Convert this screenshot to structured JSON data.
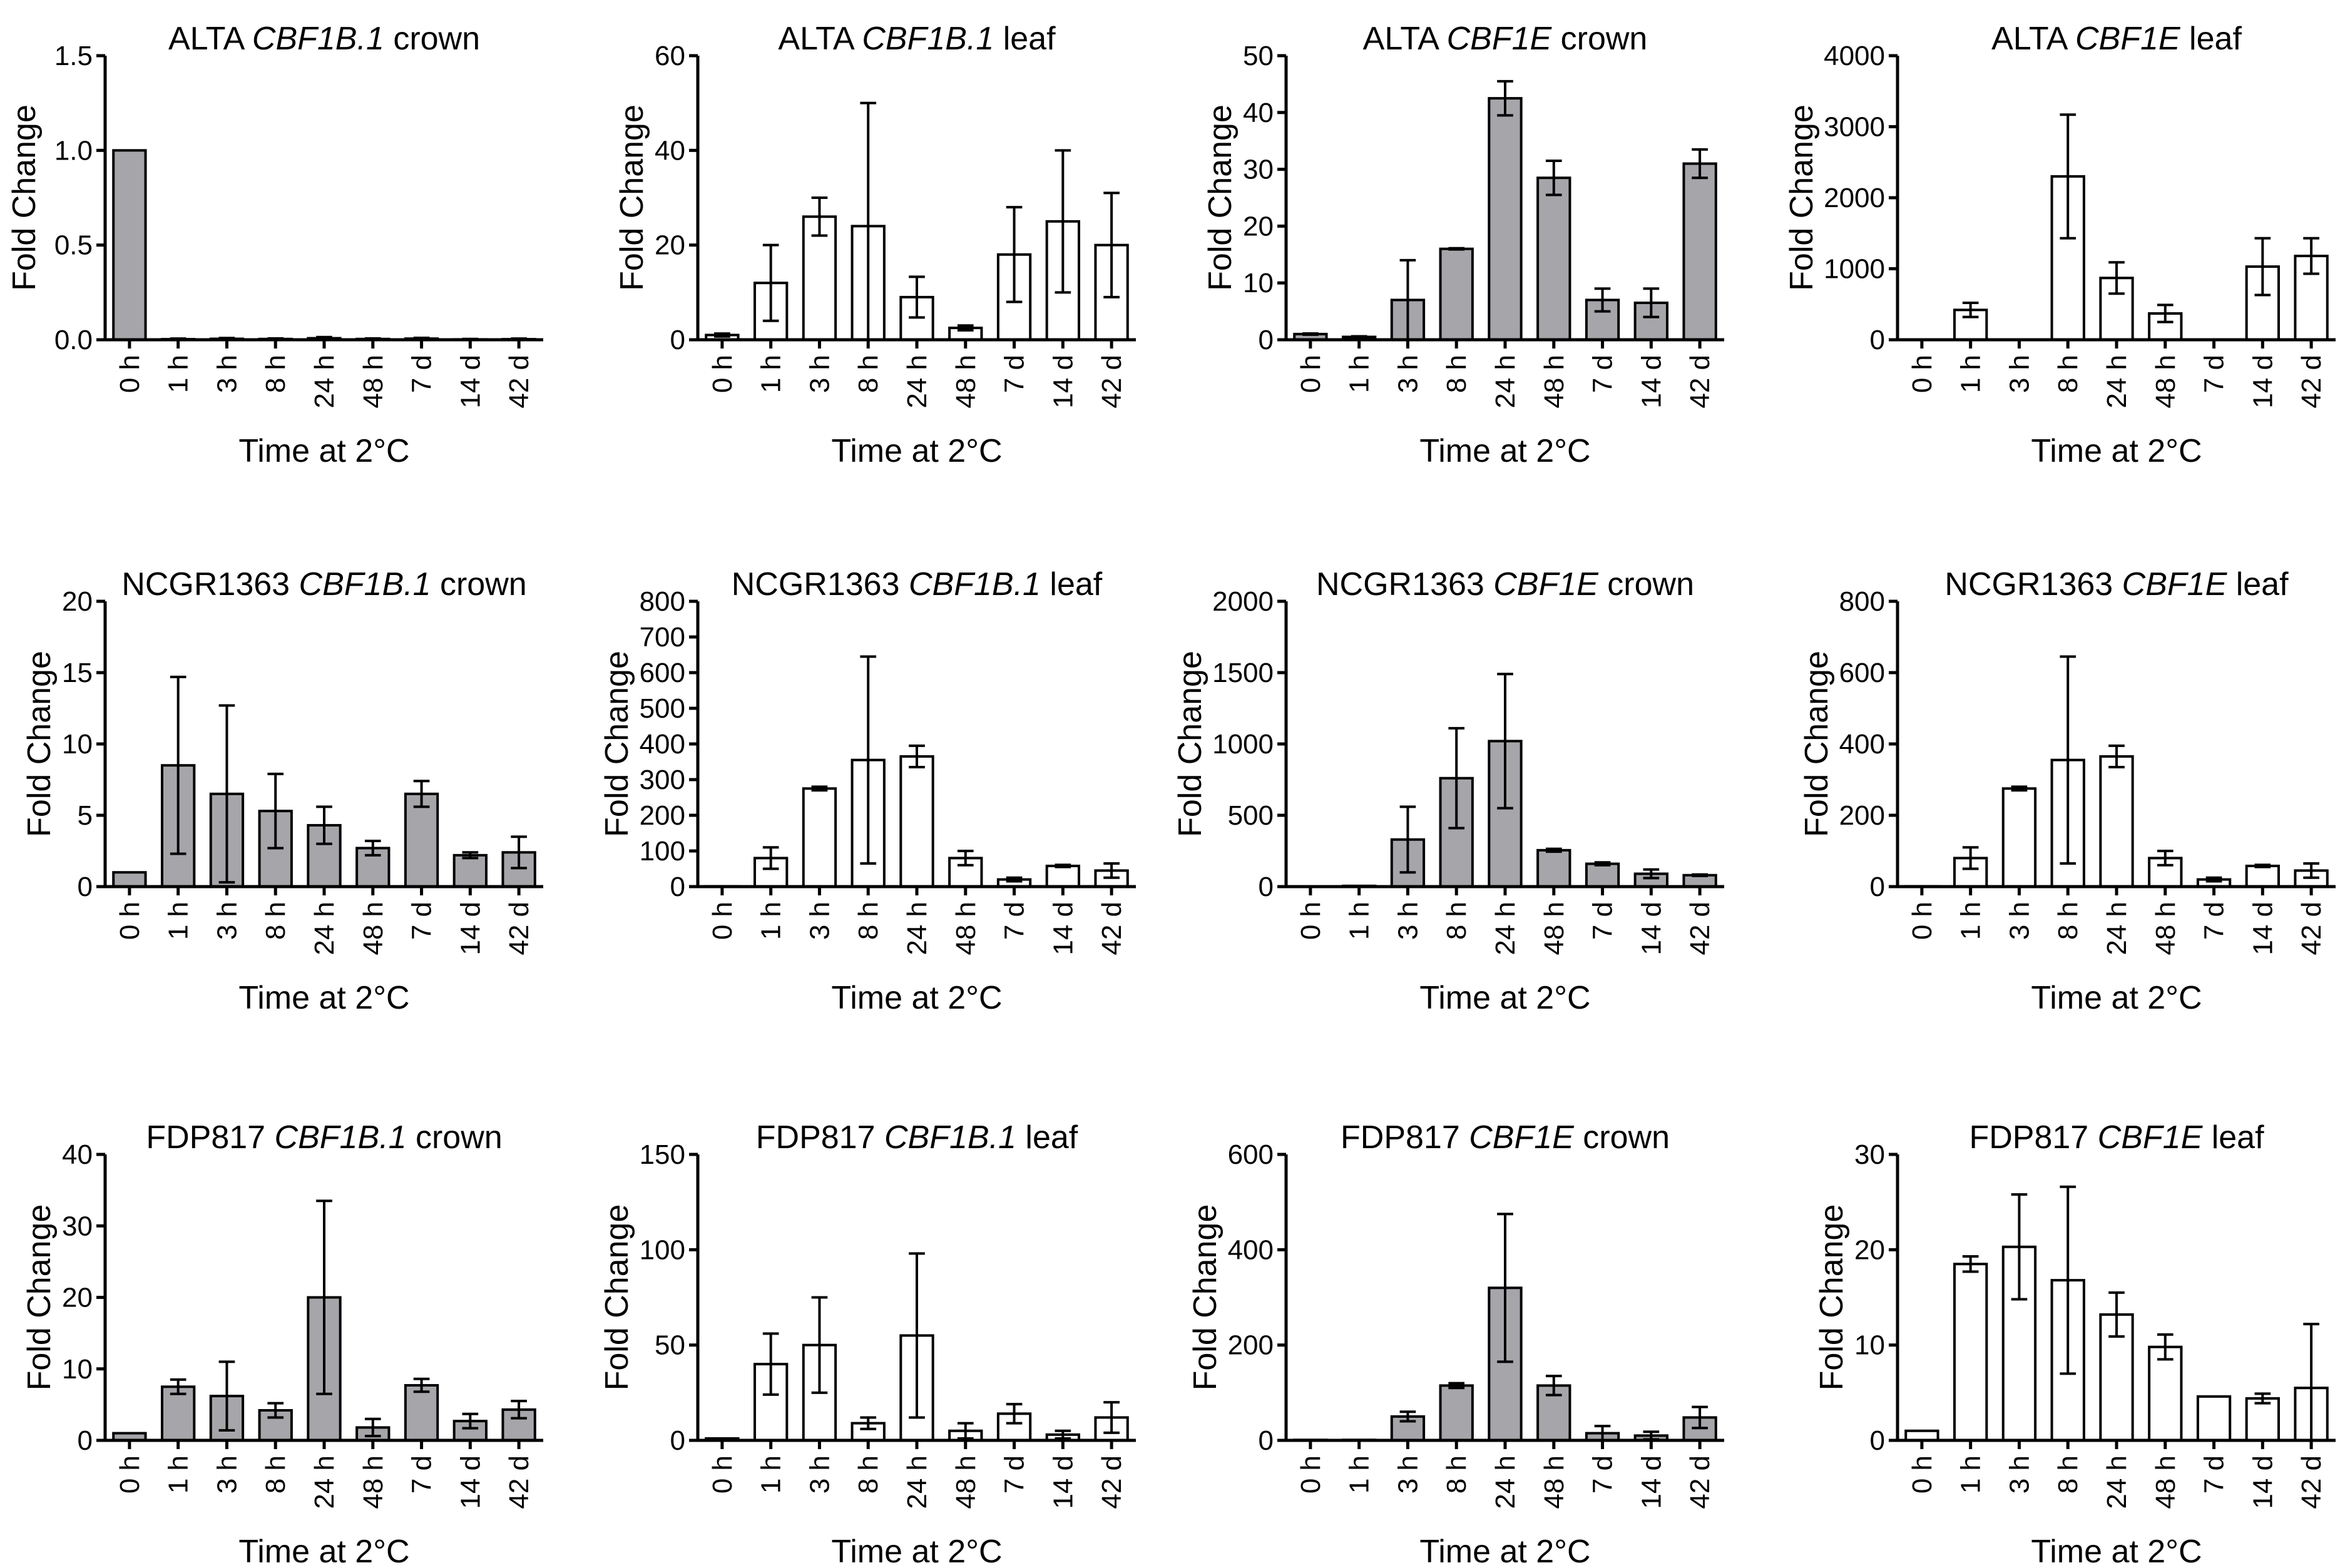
{
  "chart_data": [
    {
      "type": "bar",
      "title": {
        "prefix": "ALTA ",
        "gene": "CBF1B.1",
        "suffix": " crown"
      },
      "fill": "#a6a6aa",
      "ylim": [
        0,
        1.5
      ],
      "yticks": [
        "0.0",
        "0.5",
        "1.0",
        "1.5"
      ],
      "ytick_values": [
        0,
        0.5,
        1,
        1.5
      ],
      "values": [
        1,
        0.003,
        0.005,
        0.004,
        0.008,
        0.004,
        0.006,
        0.002,
        0.003
      ],
      "errors": [
        0,
        0.003,
        0.004,
        0.003,
        0.006,
        0.003,
        0.004,
        0.002,
        0.003
      ]
    },
    {
      "type": "bar",
      "title": {
        "prefix": "ALTA ",
        "gene": "CBF1B.1",
        "suffix": " leaf"
      },
      "fill": "#ffffff",
      "ylim": [
        0,
        60
      ],
      "yticks": [
        "0",
        "20",
        "40",
        "60"
      ],
      "ytick_values": [
        0,
        20,
        40,
        60
      ],
      "values": [
        1,
        12,
        26,
        24,
        9,
        2.5,
        18,
        25,
        20
      ],
      "errors": [
        0.3,
        8,
        4,
        26,
        4.3,
        0.5,
        10,
        15,
        11
      ]
    },
    {
      "type": "bar",
      "title": {
        "prefix": "ALTA ",
        "gene": "CBF1E",
        "suffix": " crown"
      },
      "fill": "#a6a6aa",
      "ylim": [
        0,
        50
      ],
      "yticks": [
        "0",
        "10",
        "20",
        "30",
        "40",
        "50"
      ],
      "ytick_values": [
        0,
        10,
        20,
        30,
        40,
        50
      ],
      "values": [
        1,
        0.5,
        7,
        16,
        42.5,
        28.5,
        7,
        6.5,
        31
      ],
      "errors": [
        0.1,
        0.1,
        7,
        0.1,
        3,
        3,
        2,
        2.5,
        2.5
      ]
    },
    {
      "type": "bar",
      "title": {
        "prefix": "ALTA ",
        "gene": "CBF1E",
        "suffix": " leaf"
      },
      "fill": "#ffffff",
      "ylim": [
        0,
        4000
      ],
      "yticks": [
        "0",
        "1000",
        "2000",
        "3000",
        "4000"
      ],
      "ytick_values": [
        0,
        1000,
        2000,
        3000,
        4000
      ],
      "values": [
        0,
        420,
        0,
        2300,
        870,
        370,
        0,
        1030,
        1180
      ],
      "errors": [
        0,
        100,
        0,
        870,
        220,
        120,
        0,
        400,
        250
      ]
    },
    {
      "type": "bar",
      "title": {
        "prefix": "NCGR1363 ",
        "gene": "CBF1B.1",
        "suffix": " crown"
      },
      "fill": "#a6a6aa",
      "ylim": [
        0,
        20
      ],
      "yticks": [
        "0",
        "5",
        "10",
        "15",
        "20"
      ],
      "ytick_values": [
        0,
        5,
        10,
        15,
        20
      ],
      "values": [
        1,
        8.5,
        6.5,
        5.3,
        4.3,
        2.7,
        6.5,
        2.2,
        2.4
      ],
      "errors": [
        0,
        6.2,
        6.2,
        2.6,
        1.3,
        0.5,
        0.9,
        0.2,
        1.1
      ]
    },
    {
      "type": "bar",
      "title": {
        "prefix": "NCGR1363 ",
        "gene": "CBF1B.1",
        "suffix": " leaf"
      },
      "fill": "#ffffff",
      "ylim": [
        0,
        800
      ],
      "yticks": [
        "0",
        "100",
        "200",
        "300",
        "400",
        "500",
        "600",
        "700",
        "800"
      ],
      "ytick_values": [
        0,
        100,
        200,
        300,
        400,
        500,
        600,
        700,
        800
      ],
      "values": [
        1,
        80,
        275,
        355,
        365,
        80,
        20,
        58,
        45
      ],
      "errors": [
        0,
        30,
        5,
        290,
        30,
        20,
        5,
        3,
        20
      ]
    },
    {
      "type": "bar",
      "title": {
        "prefix": "NCGR1363 ",
        "gene": "CBF1E",
        "suffix": " crown"
      },
      "fill": "#a6a6aa",
      "ylim": [
        0,
        2000
      ],
      "yticks": [
        "0",
        "500",
        "1000",
        "1500",
        "2000"
      ],
      "ytick_values": [
        0,
        500,
        1000,
        1500,
        2000
      ],
      "values": [
        1,
        5,
        330,
        760,
        1020,
        255,
        160,
        90,
        80
      ],
      "errors": [
        0,
        0,
        230,
        350,
        470,
        10,
        10,
        30,
        5
      ]
    },
    {
      "type": "bar",
      "title": {
        "prefix": "NCGR1363 ",
        "gene": "CBF1E",
        "suffix": " leaf"
      },
      "fill": "#ffffff",
      "ylim": [
        0,
        800
      ],
      "yticks": [
        "0",
        "200",
        "400",
        "600",
        "800"
      ],
      "ytick_values": [
        0,
        200,
        400,
        600,
        800
      ],
      "values": [
        1,
        80,
        275,
        355,
        365,
        80,
        20,
        58,
        45
      ],
      "errors": [
        0,
        30,
        5,
        290,
        30,
        20,
        5,
        3,
        20
      ]
    },
    {
      "type": "bar",
      "title": {
        "prefix": "FDP817 ",
        "gene": "CBF1B.1",
        "suffix": " crown"
      },
      "fill": "#a6a6aa",
      "ylim": [
        0,
        40
      ],
      "yticks": [
        "0",
        "10",
        "20",
        "30",
        "40"
      ],
      "ytick_values": [
        0,
        10,
        20,
        30,
        40
      ],
      "values": [
        1,
        7.5,
        6.2,
        4.2,
        20,
        1.8,
        7.7,
        2.7,
        4.3
      ],
      "errors": [
        0,
        1,
        4.8,
        1,
        13.5,
        1.2,
        0.9,
        1,
        1.2
      ]
    },
    {
      "type": "bar",
      "title": {
        "prefix": "FDP817 ",
        "gene": "CBF1B.1",
        "suffix": " leaf"
      },
      "fill": "#ffffff",
      "ylim": [
        0,
        150
      ],
      "yticks": [
        "0",
        "50",
        "100",
        "150"
      ],
      "ytick_values": [
        0,
        50,
        100,
        150
      ],
      "values": [
        1,
        40,
        50,
        9,
        55,
        5,
        14,
        3,
        12
      ],
      "errors": [
        0,
        16,
        25,
        3,
        43,
        4,
        5,
        2,
        8
      ]
    },
    {
      "type": "bar",
      "title": {
        "prefix": "FDP817 ",
        "gene": "CBF1E",
        "suffix": " crown"
      },
      "fill": "#a6a6aa",
      "ylim": [
        0,
        600
      ],
      "yticks": [
        "0",
        "200",
        "400",
        "600"
      ],
      "ytick_values": [
        0,
        200,
        400,
        600
      ],
      "values": [
        1,
        1,
        50,
        115,
        320,
        115,
        15,
        10,
        48
      ],
      "errors": [
        0,
        0,
        10,
        5,
        155,
        20,
        15,
        8,
        22
      ]
    },
    {
      "type": "bar",
      "title": {
        "prefix": "FDP817 ",
        "gene": "CBF1E",
        "suffix": " leaf"
      },
      "fill": "#ffffff",
      "ylim": [
        0,
        30
      ],
      "yticks": [
        "0",
        "10",
        "20",
        "30"
      ],
      "ytick_values": [
        0,
        10,
        20,
        30
      ],
      "values": [
        1,
        18.5,
        20.3,
        16.8,
        13.2,
        9.8,
        4.6,
        4.4,
        5.5
      ],
      "errors": [
        0,
        0.8,
        5.5,
        9.8,
        2.3,
        1.3,
        0,
        0.5,
        6.7
      ]
    }
  ],
  "categories": [
    "0 h",
    "1 h",
    "3 h",
    "8 h",
    "24 h",
    "48 h",
    "7 d",
    "14 d",
    "42 d"
  ],
  "xlabel": "Time at 2°C",
  "ylabel": "Fold Change"
}
